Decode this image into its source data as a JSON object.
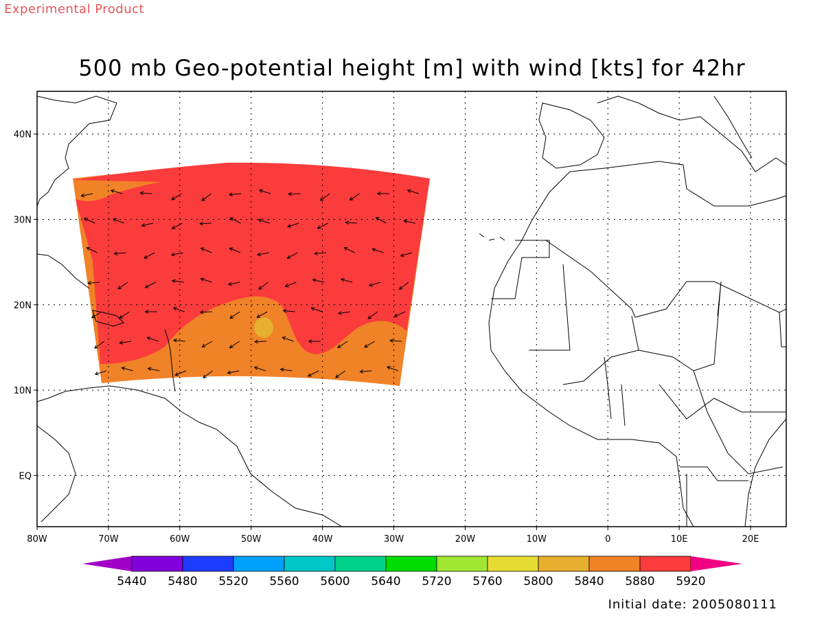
{
  "watermark": "Experimental Product",
  "title": "500 mb Geo-potential height [m] with wind [kts] for 42hr",
  "initial_date": "Initial date: 2005080111",
  "map": {
    "lon_range": [
      -80,
      25
    ],
    "lat_range": [
      -6,
      45
    ],
    "lon_ticks": [
      {
        "value": -80,
        "label": "80W"
      },
      {
        "value": -70,
        "label": "70W"
      },
      {
        "value": -60,
        "label": "60W"
      },
      {
        "value": -50,
        "label": "50W"
      },
      {
        "value": -40,
        "label": "40W"
      },
      {
        "value": -30,
        "label": "30W"
      },
      {
        "value": -20,
        "label": "20W"
      },
      {
        "value": -10,
        "label": "10W"
      },
      {
        "value": 0,
        "label": "0"
      },
      {
        "value": 10,
        "label": "10E"
      },
      {
        "value": 20,
        "label": "20E"
      }
    ],
    "lat_ticks": [
      {
        "value": 40,
        "label": "40N"
      },
      {
        "value": 30,
        "label": "30N"
      },
      {
        "value": 20,
        "label": "20N"
      },
      {
        "value": 10,
        "label": "10N"
      },
      {
        "value": 0,
        "label": "EQ"
      }
    ],
    "grid": true
  },
  "colorbar": {
    "labels": [
      "5440",
      "5480",
      "5520",
      "5560",
      "5600",
      "5640",
      "5720",
      "5760",
      "5800",
      "5840",
      "5880",
      "5920"
    ],
    "colors": [
      "#a000c8",
      "#8200dc",
      "#1e3cff",
      "#00a0ff",
      "#00c8c8",
      "#00d28c",
      "#00dc00",
      "#a0e632",
      "#e6dc32",
      "#e6af2d",
      "#f08228",
      "#fa3c3c",
      "#f00082"
    ]
  },
  "fill_colors": {
    "high": "#fa3c3c",
    "mid": "#f08228",
    "low": "#e6af2d"
  }
}
